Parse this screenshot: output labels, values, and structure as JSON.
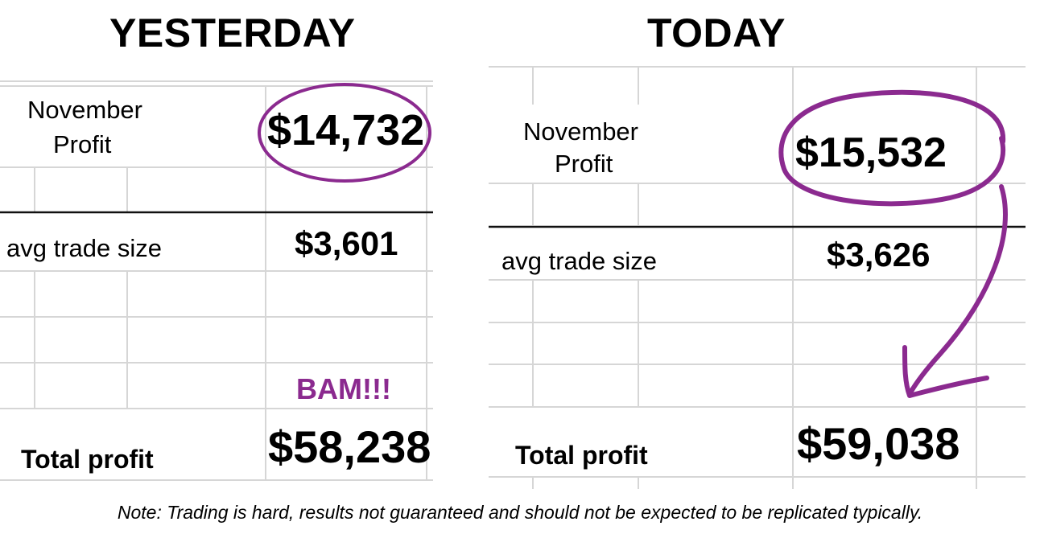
{
  "colors": {
    "accent": "#8b2a8f",
    "grid": "#d6d6d6",
    "rule": "#111111"
  },
  "yesterday": {
    "heading": "YESTERDAY",
    "november_label_line1": "November",
    "november_label_line2": "Profit",
    "november_value": "$14,732",
    "avg_label": "avg trade size",
    "avg_value": "$3,601",
    "bam": "BAM!!!",
    "total_label": "Total profit",
    "total_value": "$58,238"
  },
  "today": {
    "heading": "TODAY",
    "november_label_line1": "November",
    "november_label_line2": "Profit",
    "november_value": "$15,532",
    "avg_label": "avg trade size",
    "avg_value": "$3,626",
    "total_label": "Total profit",
    "total_value": "$59,038"
  },
  "note": "Note: Trading is hard, results not guaranteed and should not be expected to be replicated typically."
}
